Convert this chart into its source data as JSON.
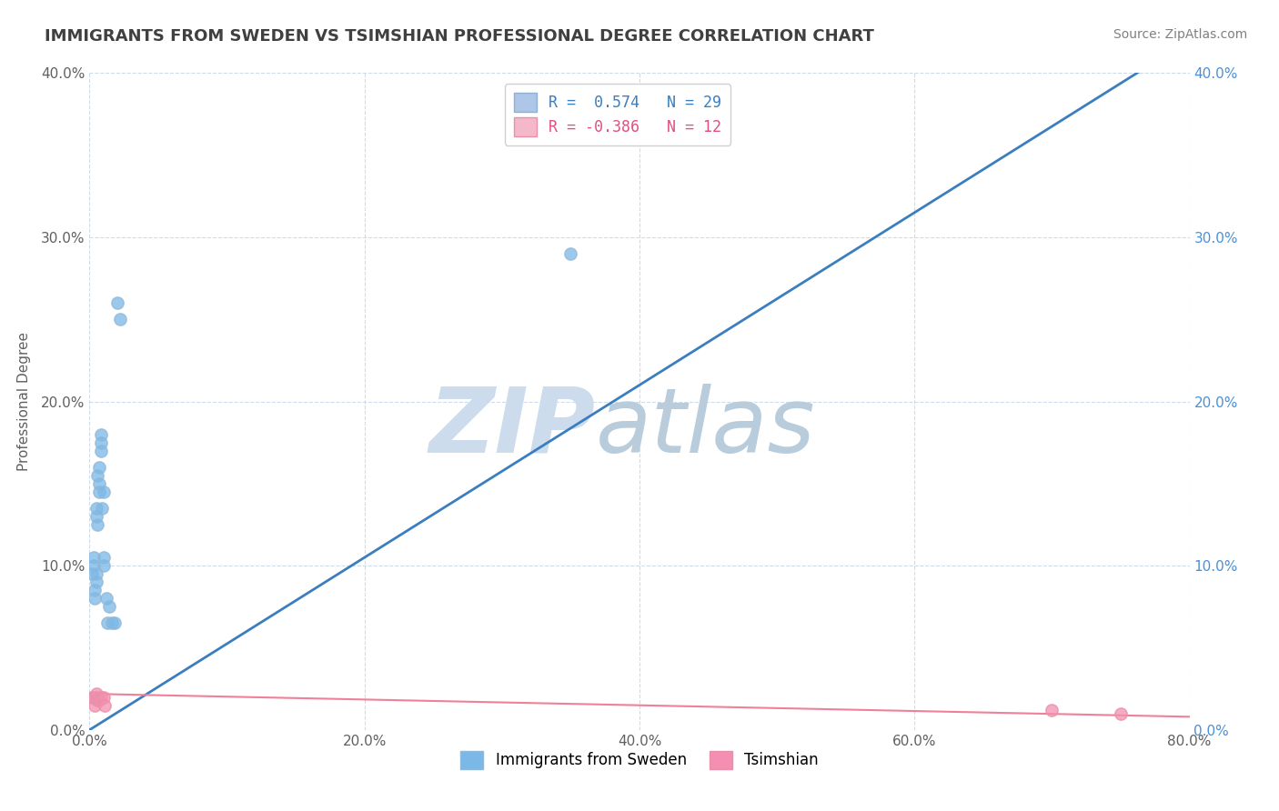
{
  "title": "IMMIGRANTS FROM SWEDEN VS TSIMSHIAN PROFESSIONAL DEGREE CORRELATION CHART",
  "source": "Source: ZipAtlas.com",
  "ylabel": "Professional Degree",
  "xlim": [
    0.0,
    0.8
  ],
  "ylim": [
    0.0,
    0.4
  ],
  "xtick_vals": [
    0.0,
    0.2,
    0.4,
    0.6,
    0.8
  ],
  "ytick_vals": [
    0.0,
    0.1,
    0.2,
    0.3,
    0.4
  ],
  "legend_entries": [
    {
      "label": "R =  0.574   N = 29",
      "color": "#aec6e8"
    },
    {
      "label": "R = -0.386   N = 12",
      "color": "#f5b8cb"
    }
  ],
  "blue_scatter_x": [
    0.002,
    0.003,
    0.003,
    0.004,
    0.004,
    0.005,
    0.005,
    0.005,
    0.005,
    0.006,
    0.006,
    0.007,
    0.007,
    0.007,
    0.008,
    0.008,
    0.008,
    0.009,
    0.01,
    0.01,
    0.01,
    0.012,
    0.013,
    0.014,
    0.016,
    0.018,
    0.02,
    0.022,
    0.35
  ],
  "blue_scatter_y": [
    0.095,
    0.1,
    0.105,
    0.08,
    0.085,
    0.09,
    0.095,
    0.13,
    0.135,
    0.125,
    0.155,
    0.145,
    0.15,
    0.16,
    0.17,
    0.175,
    0.18,
    0.135,
    0.1,
    0.105,
    0.145,
    0.08,
    0.065,
    0.075,
    0.065,
    0.065,
    0.26,
    0.25,
    0.29
  ],
  "pink_scatter_x": [
    0.002,
    0.003,
    0.004,
    0.005,
    0.005,
    0.006,
    0.007,
    0.008,
    0.01,
    0.011,
    0.7,
    0.75
  ],
  "pink_scatter_y": [
    0.02,
    0.02,
    0.015,
    0.02,
    0.022,
    0.018,
    0.018,
    0.02,
    0.02,
    0.015,
    0.012,
    0.01
  ],
  "blue_line_x": [
    0.0,
    0.8
  ],
  "blue_line_y": [
    0.0,
    0.42
  ],
  "pink_line_x": [
    0.0,
    0.8
  ],
  "pink_line_y": [
    0.022,
    0.008
  ],
  "blue_color": "#7ab8e8",
  "pink_color": "#f48fb1",
  "blue_line_color": "#3a7ebf",
  "pink_line_color": "#f08098",
  "background_color": "#ffffff",
  "grid_color": "#c8d8e8",
  "title_color": "#404040"
}
